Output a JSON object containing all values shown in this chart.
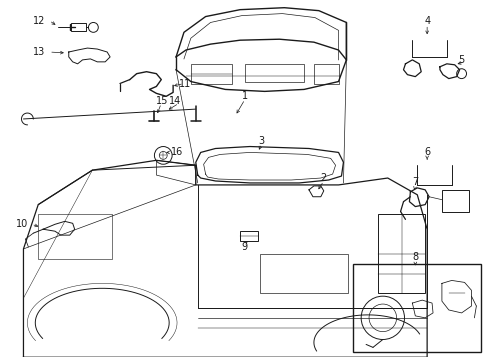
{
  "bg_color": "#ffffff",
  "line_color": "#1a1a1a",
  "figsize": [
    4.89,
    3.6
  ],
  "dpi": 100,
  "fs": 7.0
}
